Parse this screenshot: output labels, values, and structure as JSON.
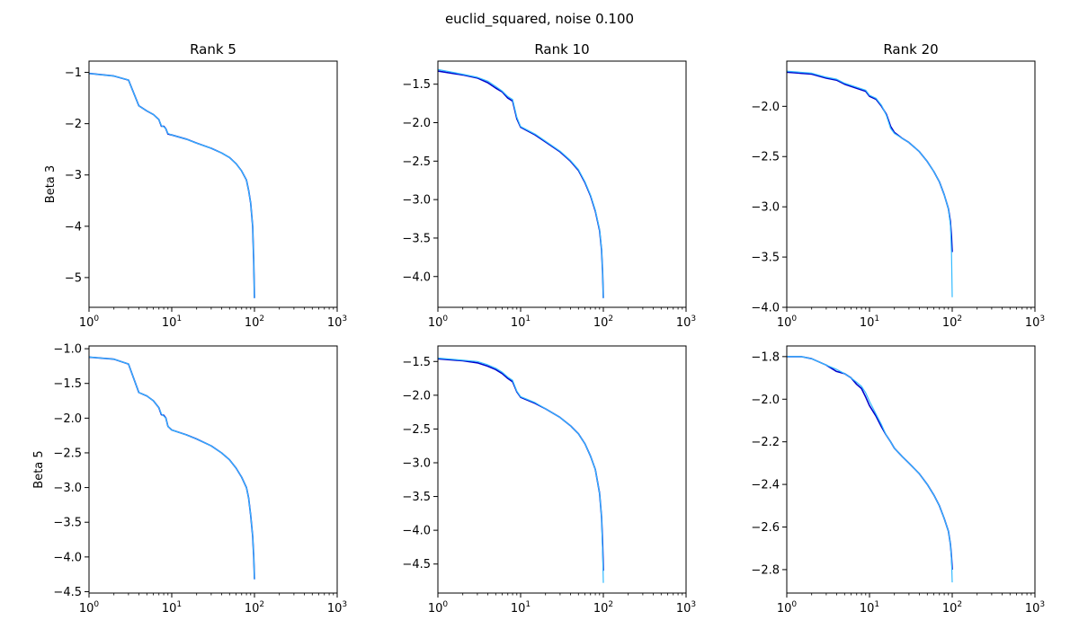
{
  "figure": {
    "suptitle": "euclid_squared, noise 0.100"
  },
  "chart_data": [
    {
      "type": "line",
      "title": "Rank 5",
      "xlabel": "",
      "ylabel": "Beta 3",
      "xscale": "log",
      "xlim": [
        1,
        1000
      ],
      "ylim": [
        -5.58,
        -0.78
      ],
      "xticks": [
        1,
        10,
        100,
        1000
      ],
      "xtick_labels": [
        "10^0",
        "10^1",
        "10^2",
        "10^3"
      ],
      "yticks": [
        -1,
        -2,
        -3,
        -4,
        -5
      ],
      "ytick_labels": [
        "−1",
        "−2",
        "−3",
        "−4",
        "−5"
      ],
      "grid": false,
      "series": [
        {
          "color": "#0000cc",
          "x": [
            1,
            2,
            3,
            4,
            5,
            6,
            7,
            7.5,
            8,
            8.5,
            9,
            10,
            15,
            20,
            30,
            40,
            50,
            60,
            70,
            80,
            85,
            90,
            95,
            98,
            100
          ],
          "y": [
            -1.02,
            -1.07,
            -1.15,
            -1.65,
            -1.75,
            -1.82,
            -1.92,
            -2.05,
            -2.05,
            -2.1,
            -2.2,
            -2.22,
            -2.3,
            -2.38,
            -2.48,
            -2.57,
            -2.66,
            -2.78,
            -2.92,
            -3.1,
            -3.3,
            -3.55,
            -4.0,
            -4.7,
            -5.4
          ]
        },
        {
          "color": "#33bbff",
          "x": [
            1,
            2,
            3,
            4,
            5,
            6,
            7,
            7.5,
            8,
            8.5,
            9,
            10,
            15,
            20,
            30,
            40,
            50,
            60,
            70,
            80,
            85,
            90,
            95,
            98,
            100
          ],
          "y": [
            -1.02,
            -1.07,
            -1.15,
            -1.65,
            -1.75,
            -1.82,
            -1.92,
            -2.04,
            -2.06,
            -2.1,
            -2.19,
            -2.22,
            -2.3,
            -2.38,
            -2.48,
            -2.57,
            -2.66,
            -2.78,
            -2.92,
            -3.1,
            -3.3,
            -3.55,
            -4.0,
            -4.7,
            -5.4
          ]
        }
      ]
    },
    {
      "type": "line",
      "title": "Rank 10",
      "xlabel": "",
      "ylabel": "",
      "xscale": "log",
      "xlim": [
        1,
        1000
      ],
      "ylim": [
        -4.4,
        -1.2
      ],
      "xticks": [
        1,
        10,
        100,
        1000
      ],
      "xtick_labels": [
        "10^0",
        "10^1",
        "10^2",
        "10^3"
      ],
      "yticks": [
        -1.5,
        -2.0,
        -2.5,
        -3.0,
        -3.5,
        -4.0
      ],
      "ytick_labels": [
        "−1.5",
        "−2.0",
        "−2.5",
        "−3.0",
        "−3.5",
        "−4.0"
      ],
      "grid": false,
      "series": [
        {
          "color": "#0000cc",
          "x": [
            1,
            2,
            3,
            4,
            5,
            6,
            7,
            8,
            9,
            10,
            15,
            20,
            30,
            40,
            50,
            60,
            70,
            80,
            90,
            95,
            98,
            100
          ],
          "y": [
            -1.33,
            -1.38,
            -1.42,
            -1.48,
            -1.55,
            -1.6,
            -1.68,
            -1.72,
            -1.95,
            -2.06,
            -2.16,
            -2.25,
            -2.38,
            -2.5,
            -2.62,
            -2.78,
            -2.95,
            -3.15,
            -3.4,
            -3.65,
            -3.95,
            -4.28
          ]
        },
        {
          "color": "#33bbff",
          "x": [
            1,
            2,
            3,
            4,
            5,
            6,
            7,
            8,
            9,
            10,
            15,
            20,
            30,
            40,
            50,
            60,
            70,
            80,
            90,
            95,
            98,
            100
          ],
          "y": [
            -1.31,
            -1.37,
            -1.41,
            -1.46,
            -1.53,
            -1.59,
            -1.66,
            -1.7,
            -1.93,
            -2.05,
            -2.15,
            -2.24,
            -2.37,
            -2.49,
            -2.61,
            -2.77,
            -2.94,
            -3.14,
            -3.39,
            -3.64,
            -3.95,
            -4.28
          ]
        }
      ]
    },
    {
      "type": "line",
      "title": "Rank 20",
      "xlabel": "",
      "ylabel": "",
      "xscale": "log",
      "xlim": [
        1,
        1000
      ],
      "ylim": [
        -4.0,
        -1.55
      ],
      "xticks": [
        1,
        10,
        100,
        1000
      ],
      "xtick_labels": [
        "10^0",
        "10^1",
        "10^2",
        "10^3"
      ],
      "yticks": [
        -2.0,
        -2.5,
        -3.0,
        -3.5,
        -4.0
      ],
      "ytick_labels": [
        "−2.0",
        "−2.5",
        "−3.0",
        "−3.5",
        "−4.0"
      ],
      "grid": false,
      "series": [
        {
          "color": "#0000cc",
          "x": [
            1,
            2,
            3,
            4,
            5,
            7,
            9,
            10,
            12,
            14,
            16,
            18,
            20,
            25,
            30,
            40,
            50,
            60,
            70,
            80,
            90,
            95,
            98,
            100
          ],
          "y": [
            -1.66,
            -1.68,
            -1.72,
            -1.74,
            -1.78,
            -1.82,
            -1.85,
            -1.9,
            -1.93,
            -2.0,
            -2.08,
            -2.2,
            -2.26,
            -2.32,
            -2.36,
            -2.45,
            -2.55,
            -2.65,
            -2.75,
            -2.88,
            -3.02,
            -3.15,
            -3.3,
            -3.45
          ]
        },
        {
          "color": "#33bbff",
          "x": [
            1,
            2,
            3,
            4,
            5,
            7,
            9,
            10,
            12,
            14,
            16,
            18,
            20,
            25,
            30,
            40,
            50,
            60,
            70,
            80,
            90,
            95,
            98,
            100
          ],
          "y": [
            -1.65,
            -1.67,
            -1.71,
            -1.73,
            -1.77,
            -1.81,
            -1.84,
            -1.89,
            -1.92,
            -1.99,
            -2.09,
            -2.22,
            -2.27,
            -2.32,
            -2.36,
            -2.45,
            -2.55,
            -2.65,
            -2.75,
            -2.88,
            -3.02,
            -3.18,
            -3.45,
            -3.9
          ]
        }
      ]
    },
    {
      "type": "line",
      "title": "",
      "xlabel": "",
      "ylabel": "Beta 5",
      "xscale": "log",
      "xlim": [
        1,
        1000
      ],
      "ylim": [
        -4.52,
        -0.96
      ],
      "xticks": [
        1,
        10,
        100,
        1000
      ],
      "xtick_labels": [
        "10^0",
        "10^1",
        "10^2",
        "10^3"
      ],
      "yticks": [
        -1.0,
        -1.5,
        -2.0,
        -2.5,
        -3.0,
        -3.5,
        -4.0,
        -4.5
      ],
      "ytick_labels": [
        "−1.0",
        "−1.5",
        "−2.0",
        "−2.5",
        "−3.0",
        "−3.5",
        "−4.0",
        "−4.5"
      ],
      "grid": false,
      "series": [
        {
          "color": "#0000cc",
          "x": [
            1,
            2,
            3,
            4,
            5,
            6,
            7,
            7.5,
            8,
            8.5,
            9,
            10,
            15,
            20,
            30,
            40,
            50,
            60,
            70,
            80,
            85,
            90,
            95,
            98,
            100
          ],
          "y": [
            -1.12,
            -1.15,
            -1.22,
            -1.63,
            -1.68,
            -1.75,
            -1.85,
            -1.95,
            -1.96,
            -2.0,
            -2.12,
            -2.17,
            -2.24,
            -2.3,
            -2.4,
            -2.5,
            -2.6,
            -2.72,
            -2.85,
            -3.0,
            -3.15,
            -3.4,
            -3.7,
            -4.0,
            -4.32
          ]
        },
        {
          "color": "#33bbff",
          "x": [
            1,
            2,
            3,
            4,
            5,
            6,
            7,
            7.5,
            8,
            8.5,
            9,
            10,
            15,
            20,
            30,
            40,
            50,
            60,
            70,
            80,
            85,
            90,
            95,
            98,
            100
          ],
          "y": [
            -1.12,
            -1.15,
            -1.22,
            -1.63,
            -1.68,
            -1.75,
            -1.85,
            -1.94,
            -1.97,
            -2.0,
            -2.12,
            -2.17,
            -2.24,
            -2.3,
            -2.4,
            -2.5,
            -2.6,
            -2.72,
            -2.85,
            -3.0,
            -3.15,
            -3.4,
            -3.7,
            -4.0,
            -4.32
          ]
        }
      ]
    },
    {
      "type": "line",
      "title": "",
      "xlabel": "",
      "ylabel": "",
      "xscale": "log",
      "xlim": [
        1,
        1000
      ],
      "ylim": [
        -4.93,
        -1.27
      ],
      "xticks": [
        1,
        10,
        100,
        1000
      ],
      "xtick_labels": [
        "10^0",
        "10^1",
        "10^2",
        "10^3"
      ],
      "yticks": [
        -1.5,
        -2.0,
        -2.5,
        -3.0,
        -3.5,
        -4.0,
        -4.5
      ],
      "ytick_labels": [
        "−1.5",
        "−2.0",
        "−2.5",
        "−3.0",
        "−3.5",
        "−4.0",
        "−4.5"
      ],
      "grid": false,
      "series": [
        {
          "color": "#0000cc",
          "x": [
            1,
            2,
            3,
            4,
            5,
            6,
            7,
            8,
            9,
            10,
            15,
            20,
            30,
            40,
            50,
            60,
            70,
            80,
            90,
            95,
            98,
            100
          ],
          "y": [
            -1.46,
            -1.49,
            -1.52,
            -1.57,
            -1.62,
            -1.68,
            -1.75,
            -1.8,
            -1.95,
            -2.03,
            -2.12,
            -2.2,
            -2.33,
            -2.45,
            -2.57,
            -2.72,
            -2.9,
            -3.1,
            -3.45,
            -3.8,
            -4.2,
            -4.6
          ]
        },
        {
          "color": "#33bbff",
          "x": [
            1,
            2,
            3,
            4,
            5,
            6,
            7,
            8,
            9,
            10,
            15,
            20,
            30,
            40,
            50,
            60,
            70,
            80,
            90,
            95,
            98,
            100
          ],
          "y": [
            -1.45,
            -1.48,
            -1.5,
            -1.55,
            -1.6,
            -1.66,
            -1.73,
            -1.78,
            -1.94,
            -2.02,
            -2.11,
            -2.2,
            -2.33,
            -2.45,
            -2.57,
            -2.72,
            -2.9,
            -3.1,
            -3.45,
            -3.8,
            -4.3,
            -4.78
          ]
        }
      ]
    },
    {
      "type": "line",
      "title": "",
      "xlabel": "",
      "ylabel": "",
      "xscale": "log",
      "xlim": [
        1,
        1000
      ],
      "ylim": [
        -2.91,
        -1.75
      ],
      "xticks": [
        1,
        10,
        100,
        1000
      ],
      "xtick_labels": [
        "10^0",
        "10^1",
        "10^2",
        "10^3"
      ],
      "yticks": [
        -1.8,
        -2.0,
        -2.2,
        -2.4,
        -2.6,
        -2.8
      ],
      "ytick_labels": [
        "−1.8",
        "−2.0",
        "−2.2",
        "−2.4",
        "−2.6",
        "−2.8"
      ],
      "grid": false,
      "series": [
        {
          "color": "#0000cc",
          "x": [
            1,
            1.5,
            2,
            3,
            4,
            5,
            6,
            7,
            8,
            9,
            10,
            12,
            14,
            16,
            18,
            20,
            25,
            30,
            40,
            50,
            60,
            70,
            80,
            90,
            95,
            98,
            100
          ],
          "y": [
            -1.8,
            -1.8,
            -1.81,
            -1.84,
            -1.87,
            -1.88,
            -1.9,
            -1.93,
            -1.95,
            -1.99,
            -2.03,
            -2.08,
            -2.13,
            -2.17,
            -2.2,
            -2.23,
            -2.27,
            -2.3,
            -2.35,
            -2.4,
            -2.45,
            -2.5,
            -2.56,
            -2.62,
            -2.68,
            -2.74,
            -2.8
          ]
        },
        {
          "color": "#33bbff",
          "x": [
            1,
            1.5,
            2,
            3,
            4,
            5,
            6,
            7,
            8,
            9,
            10,
            12,
            14,
            16,
            18,
            20,
            25,
            30,
            40,
            50,
            60,
            70,
            80,
            90,
            95,
            98,
            100
          ],
          "y": [
            -1.8,
            -1.8,
            -1.81,
            -1.84,
            -1.86,
            -1.88,
            -1.9,
            -1.92,
            -1.94,
            -1.97,
            -2.01,
            -2.07,
            -2.12,
            -2.17,
            -2.2,
            -2.23,
            -2.27,
            -2.3,
            -2.35,
            -2.4,
            -2.45,
            -2.5,
            -2.56,
            -2.62,
            -2.68,
            -2.75,
            -2.86
          ]
        }
      ]
    }
  ]
}
